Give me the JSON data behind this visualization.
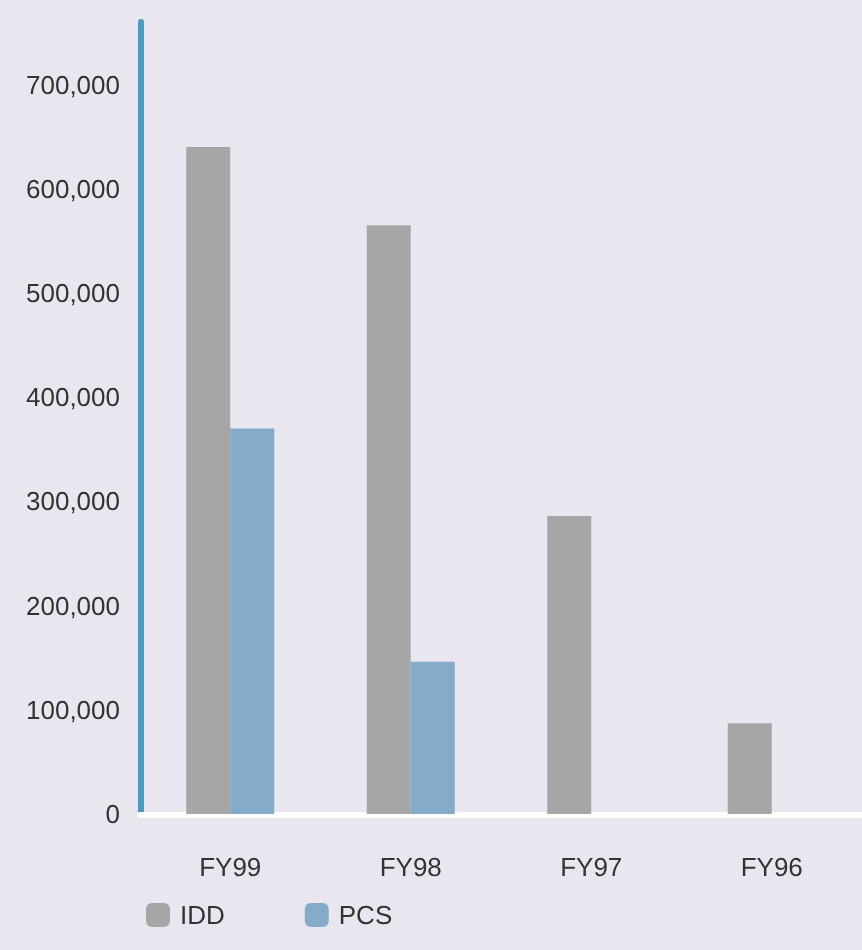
{
  "chart_data": {
    "type": "bar",
    "categories": [
      "FY99",
      "FY98",
      "FY97",
      "FY96"
    ],
    "series": [
      {
        "name": "IDD",
        "color": "#a6a6a6",
        "values": [
          640000,
          565000,
          286000,
          87000
        ]
      },
      {
        "name": "PCS",
        "color": "#84abc8",
        "values": [
          370000,
          146000,
          null,
          null
        ]
      }
    ],
    "ylim": [
      0,
      760000
    ],
    "yticks": [
      0,
      {
        "value": 100000,
        "label": "100,000"
      },
      {
        "value": 200000,
        "label": "200,000"
      },
      {
        "value": 300000,
        "label": "300,000"
      },
      {
        "value": 400000,
        "label": "400,000"
      },
      {
        "value": 500000,
        "label": "500,000"
      },
      {
        "value": 600000,
        "label": "600,000"
      },
      {
        "value": 700000,
        "label": "700,000"
      }
    ],
    "grid": false,
    "legend": "bottom left"
  }
}
